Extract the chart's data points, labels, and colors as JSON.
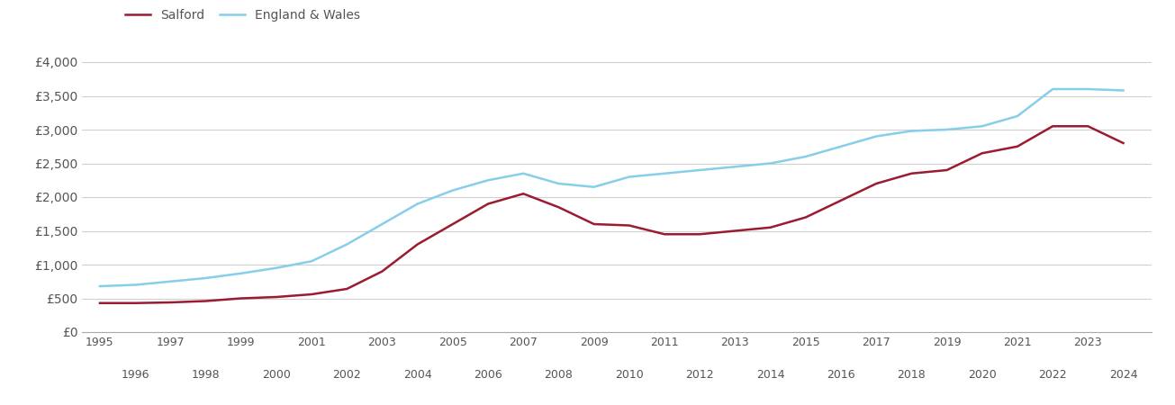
{
  "salford_color": "#9B1B30",
  "england_color": "#87CEEB",
  "legend_labels": [
    "Salford",
    "England & Wales"
  ],
  "years": [
    1995,
    1996,
    1997,
    1998,
    1999,
    2000,
    2001,
    2002,
    2003,
    2004,
    2005,
    2006,
    2007,
    2008,
    2009,
    2010,
    2011,
    2012,
    2013,
    2014,
    2015,
    2016,
    2017,
    2018,
    2019,
    2020,
    2021,
    2022,
    2023,
    2024
  ],
  "salford": [
    430,
    430,
    440,
    460,
    500,
    520,
    560,
    640,
    900,
    1300,
    1600,
    1900,
    2050,
    1850,
    1600,
    1580,
    1450,
    1450,
    1500,
    1550,
    1700,
    1950,
    2200,
    2350,
    2400,
    2650,
    2750,
    3050,
    3050,
    2800
  ],
  "england_wales": [
    680,
    700,
    750,
    800,
    870,
    950,
    1050,
    1300,
    1600,
    1900,
    2100,
    2250,
    2350,
    2200,
    2150,
    2300,
    2350,
    2400,
    2450,
    2500,
    2600,
    2750,
    2900,
    2980,
    3000,
    3050,
    3200,
    3600,
    3600,
    3580
  ],
  "ylim": [
    0,
    4200
  ],
  "yticks": [
    0,
    500,
    1000,
    1500,
    2000,
    2500,
    3000,
    3500,
    4000
  ],
  "ytick_labels": [
    "£0",
    "£500",
    "£1,000",
    "£1,500",
    "£2,000",
    "£2,500",
    "£3,000",
    "£3,500",
    "£4,000"
  ],
  "background_color": "#ffffff",
  "grid_color": "#d0d0d0",
  "line_width": 1.8,
  "xlim": [
    1994.5,
    2024.8
  ],
  "odd_years": [
    1995,
    1997,
    1999,
    2001,
    2003,
    2005,
    2007,
    2009,
    2011,
    2013,
    2015,
    2017,
    2019,
    2021,
    2023
  ],
  "even_years": [
    1996,
    1998,
    2000,
    2002,
    2004,
    2006,
    2008,
    2010,
    2012,
    2014,
    2016,
    2018,
    2020,
    2022,
    2024
  ]
}
